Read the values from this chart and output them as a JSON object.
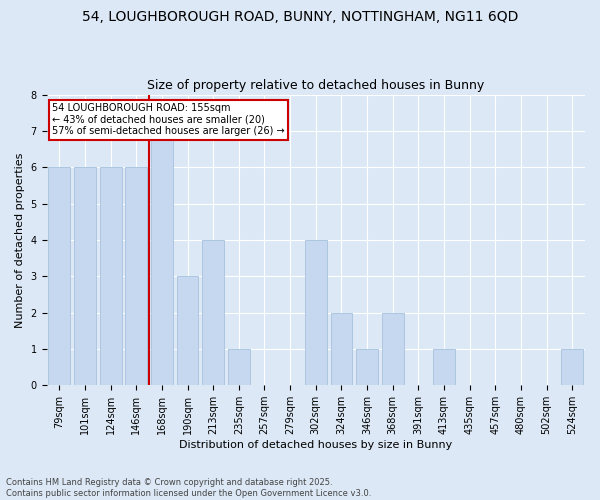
{
  "title1": "54, LOUGHBOROUGH ROAD, BUNNY, NOTTINGHAM, NG11 6QD",
  "title2": "Size of property relative to detached houses in Bunny",
  "xlabel": "Distribution of detached houses by size in Bunny",
  "ylabel": "Number of detached properties",
  "categories": [
    "79sqm",
    "101sqm",
    "124sqm",
    "146sqm",
    "168sqm",
    "190sqm",
    "213sqm",
    "235sqm",
    "257sqm",
    "279sqm",
    "302sqm",
    "324sqm",
    "346sqm",
    "368sqm",
    "391sqm",
    "413sqm",
    "435sqm",
    "457sqm",
    "480sqm",
    "502sqm",
    "524sqm"
  ],
  "values": [
    6,
    6,
    6,
    6,
    7,
    3,
    4,
    1,
    0,
    0,
    4,
    2,
    1,
    2,
    0,
    1,
    0,
    0,
    0,
    0,
    1
  ],
  "bar_color": "#c5d8f0",
  "bar_edge_color": "#adc6e0",
  "vline_color": "#cc0000",
  "vline_pos": 3.5,
  "annotation_title": "54 LOUGHBOROUGH ROAD: 155sqm",
  "annotation_line1": "← 43% of detached houses are smaller (20)",
  "annotation_line2": "57% of semi-detached houses are larger (26) →",
  "annotation_box_color": "#ffffff",
  "annotation_box_edge": "#cc0000",
  "ylim_max": 8,
  "yticks": [
    0,
    1,
    2,
    3,
    4,
    5,
    6,
    7,
    8
  ],
  "footer1": "Contains HM Land Registry data © Crown copyright and database right 2025.",
  "footer2": "Contains public sector information licensed under the Open Government Licence v3.0.",
  "bg_color": "#dce8f5",
  "title_fontsize": 10,
  "subtitle_fontsize": 9,
  "axis_label_fontsize": 8,
  "tick_fontsize": 7,
  "footer_fontsize": 6
}
